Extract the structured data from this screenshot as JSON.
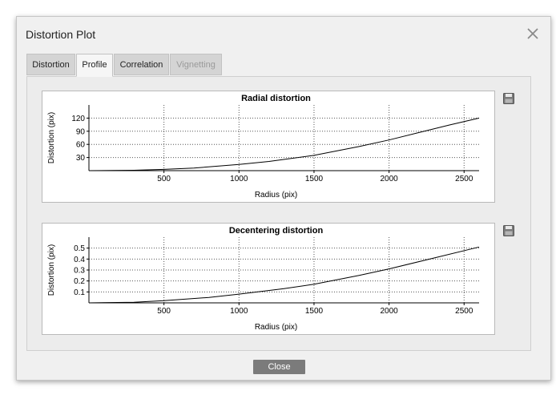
{
  "window": {
    "title": "Distortion Plot"
  },
  "tabs": [
    {
      "label": "Distortion",
      "state": "normal"
    },
    {
      "label": "Profile",
      "state": "active"
    },
    {
      "label": "Correlation",
      "state": "normal"
    },
    {
      "label": "Vignetting",
      "state": "disabled"
    }
  ],
  "close_button": {
    "label": "Close"
  },
  "icons": {
    "close": "close-icon",
    "save": "save-icon"
  },
  "chart_data": [
    {
      "type": "line",
      "title": "Radial distortion",
      "xlabel": "Radius (pix)",
      "ylabel": "Distortion (pix)",
      "xlim": [
        0,
        2600
      ],
      "ylim": [
        0,
        150
      ],
      "xticks": [
        500,
        1000,
        1500,
        2000,
        2500
      ],
      "yticks": [
        30,
        60,
        90,
        120
      ],
      "ytick_labels": [
        "30",
        "60",
        "90",
        "120"
      ],
      "grid": true,
      "series": [
        {
          "x": [
            0,
            300,
            500,
            700,
            1000,
            1200,
            1500,
            1800,
            2000,
            2200,
            2400,
            2600
          ],
          "values": [
            0,
            1,
            3,
            6,
            14,
            21,
            35,
            55,
            70,
            87,
            104,
            120
          ]
        }
      ]
    },
    {
      "type": "line",
      "title": "Decentering distortion",
      "xlabel": "Radius (pix)",
      "ylabel": "Distortion (pix)",
      "xlim": [
        0,
        2600
      ],
      "ylim": [
        0,
        0.6
      ],
      "xticks": [
        500,
        1000,
        1500,
        2000,
        2500
      ],
      "yticks": [
        0.1,
        0.2,
        0.3,
        0.4,
        0.5
      ],
      "ytick_labels": [
        "0.1",
        "0.2",
        "0.3",
        "0.4",
        "0.5"
      ],
      "grid": true,
      "series": [
        {
          "x": [
            0,
            300,
            500,
            800,
            1000,
            1300,
            1500,
            1800,
            2000,
            2300,
            2600
          ],
          "values": [
            0,
            0.005,
            0.02,
            0.05,
            0.08,
            0.13,
            0.17,
            0.25,
            0.31,
            0.41,
            0.51
          ]
        }
      ]
    }
  ]
}
